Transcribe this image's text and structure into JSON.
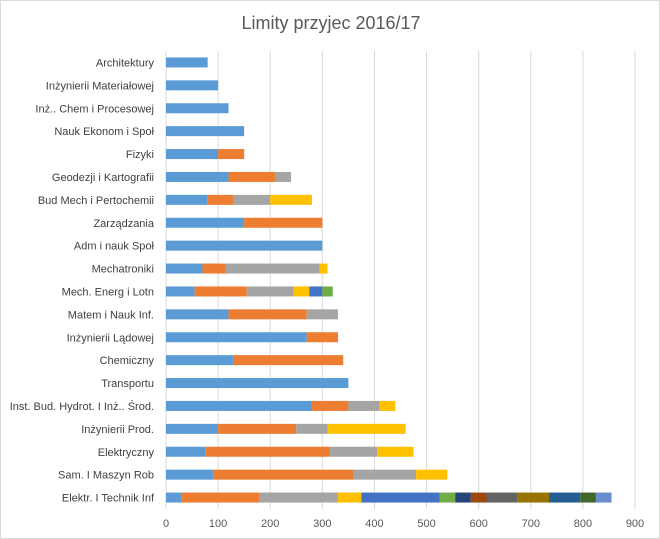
{
  "chart_data": {
    "type": "bar",
    "orientation": "horizontal",
    "stacked": true,
    "title": "Limity przyjec 2016/17",
    "xlabel": "",
    "ylabel": "",
    "xlim": [
      0,
      900
    ],
    "xticks": [
      "0",
      "100",
      "200",
      "300",
      "400",
      "500",
      "600",
      "700",
      "800",
      "900"
    ],
    "grid": true,
    "legend": "none",
    "categories": [
      "Architektury",
      "Inżynierii Materiałowej",
      "Inż.. Chem i Procesowej",
      "Nauk Ekonom i Społ",
      "Fizyki",
      "Geodezji i Kartografii",
      "Bud Mech i Pertochemii",
      "Zarządzania",
      "Adm i nauk Społ",
      "Mechatroniki",
      "Mech. Energ i Lotn",
      "Matem i Nauk Inf.",
      "Inżynierii Lądowej",
      "Chemiczny",
      "Transportu",
      "Inst. Bud. Hydrot. I Inż.. Środ.",
      "Inżynierii Prod.",
      "Elektryczny",
      "Sam. I Maszyn Rob",
      "Elektr. I Technik Inf"
    ],
    "series": [
      {
        "color": "#5b9bd5",
        "values": [
          80,
          100,
          120,
          150,
          100,
          120,
          80,
          150,
          300,
          70,
          55,
          120,
          270,
          130,
          350,
          280,
          100,
          75,
          90,
          30
        ]
      },
      {
        "color": "#ed7d31",
        "values": [
          0,
          0,
          0,
          0,
          50,
          90,
          50,
          150,
          0,
          45,
          100,
          150,
          60,
          210,
          0,
          70,
          150,
          240,
          270,
          150
        ]
      },
      {
        "color": "#a5a5a5",
        "values": [
          0,
          0,
          0,
          0,
          0,
          30,
          70,
          0,
          0,
          180,
          90,
          60,
          0,
          0,
          0,
          60,
          60,
          90,
          120,
          150
        ]
      },
      {
        "color": "#ffc000",
        "values": [
          0,
          0,
          0,
          0,
          0,
          0,
          80,
          0,
          0,
          15,
          30,
          0,
          0,
          0,
          0,
          30,
          150,
          70,
          60,
          45
        ]
      },
      {
        "color": "#4472c4",
        "values": [
          0,
          0,
          0,
          0,
          0,
          0,
          0,
          0,
          0,
          0,
          25,
          0,
          0,
          0,
          0,
          0,
          0,
          0,
          0,
          150
        ]
      },
      {
        "color": "#70ad47",
        "values": [
          0,
          0,
          0,
          0,
          0,
          0,
          0,
          0,
          0,
          0,
          20,
          0,
          0,
          0,
          0,
          0,
          0,
          0,
          0,
          30
        ]
      },
      {
        "color": "#264478",
        "values": [
          0,
          0,
          0,
          0,
          0,
          0,
          0,
          0,
          0,
          0,
          0,
          0,
          0,
          0,
          0,
          0,
          0,
          0,
          0,
          30
        ]
      },
      {
        "color": "#9e480e",
        "values": [
          0,
          0,
          0,
          0,
          0,
          0,
          0,
          0,
          0,
          0,
          0,
          0,
          0,
          0,
          0,
          0,
          0,
          0,
          0,
          30
        ]
      },
      {
        "color": "#636363",
        "values": [
          0,
          0,
          0,
          0,
          0,
          0,
          0,
          0,
          0,
          0,
          0,
          0,
          0,
          0,
          0,
          0,
          0,
          0,
          0,
          60
        ]
      },
      {
        "color": "#997300",
        "values": [
          0,
          0,
          0,
          0,
          0,
          0,
          0,
          0,
          0,
          0,
          0,
          0,
          0,
          0,
          0,
          0,
          0,
          0,
          0,
          60
        ]
      },
      {
        "color": "#255e91",
        "values": [
          0,
          0,
          0,
          0,
          0,
          0,
          0,
          0,
          0,
          0,
          0,
          0,
          0,
          0,
          0,
          0,
          0,
          0,
          0,
          60
        ]
      },
      {
        "color": "#43682b",
        "values": [
          0,
          0,
          0,
          0,
          0,
          0,
          0,
          0,
          0,
          0,
          0,
          0,
          0,
          0,
          0,
          0,
          0,
          0,
          0,
          30
        ]
      },
      {
        "color": "#698ed0",
        "values": [
          0,
          0,
          0,
          0,
          0,
          0,
          0,
          0,
          0,
          0,
          0,
          0,
          0,
          0,
          0,
          0,
          0,
          0,
          0,
          30
        ]
      }
    ]
  }
}
